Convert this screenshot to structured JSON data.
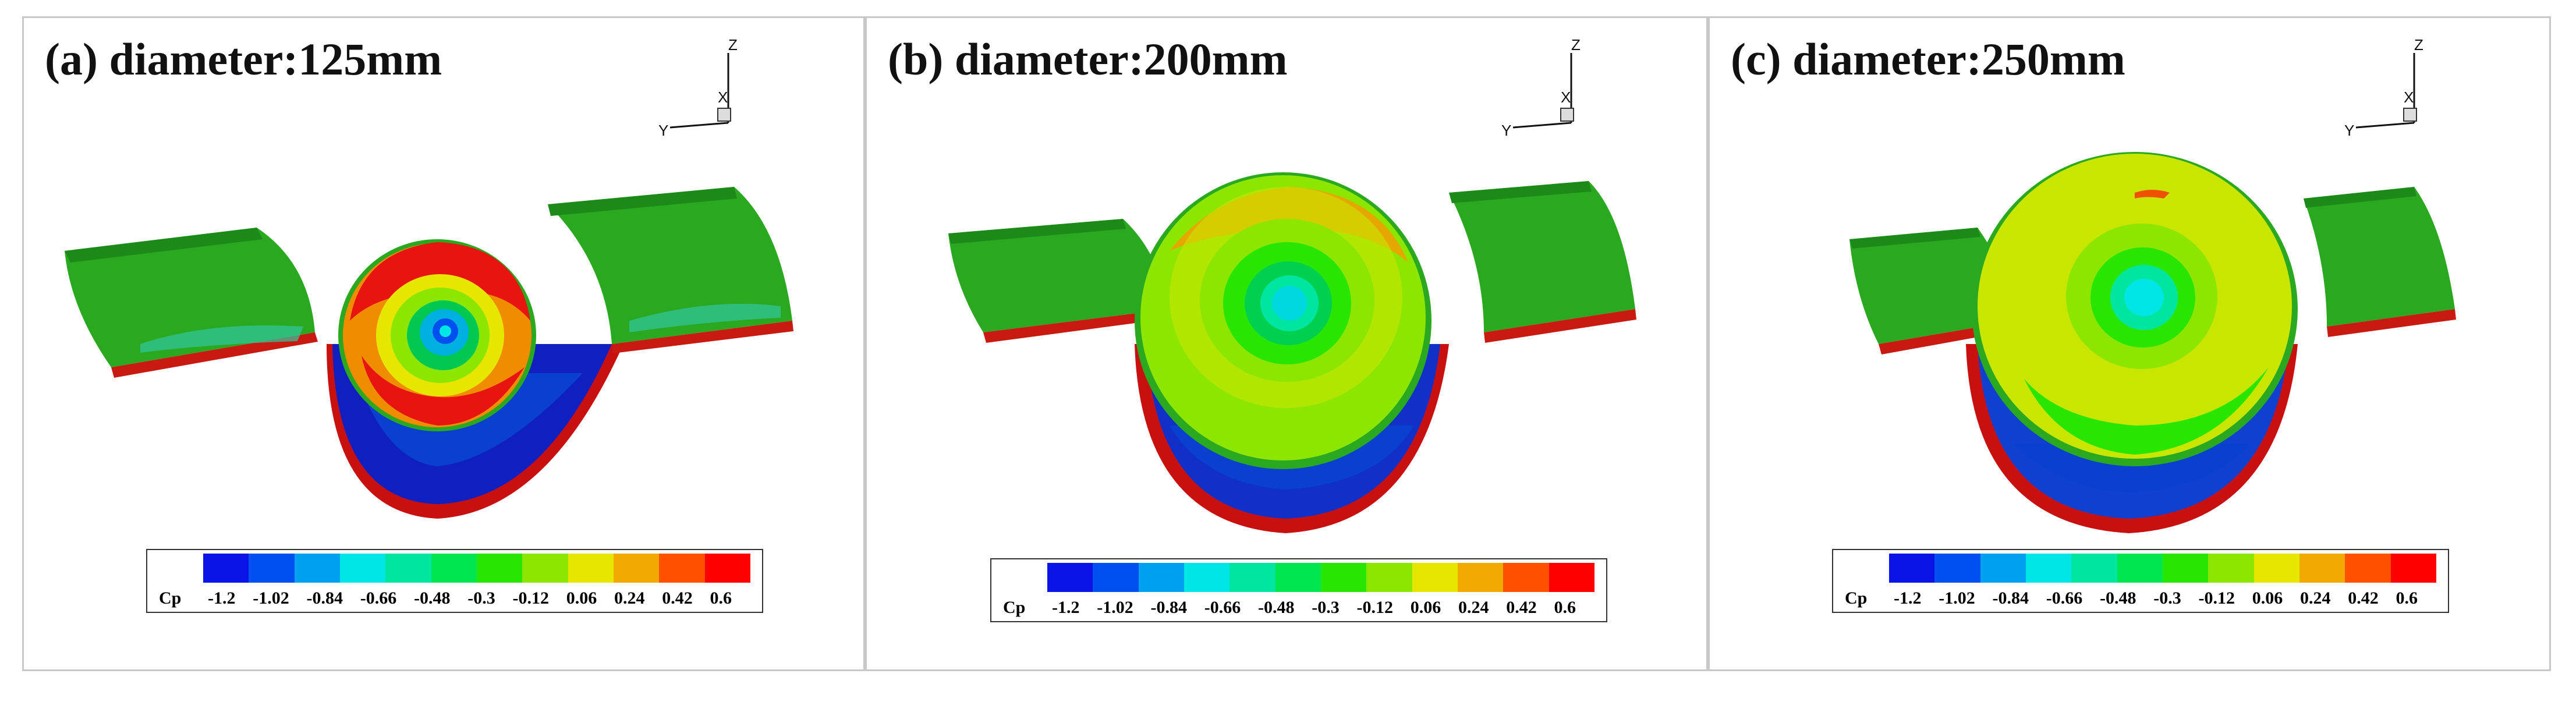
{
  "panels": [
    {
      "title": "(a) diameter:125mm"
    },
    {
      "title": "(b) diameter:200mm"
    },
    {
      "title": "(c) diameter:250mm"
    }
  ],
  "axes_labels": {
    "z": "Z",
    "x": "X",
    "y": "Y"
  },
  "legend": {
    "variable": "Cp",
    "ticks": [
      "-1.2",
      "-1.02",
      "-0.84",
      "-0.66",
      "-0.48",
      "-0.3",
      "-0.12",
      "0.06",
      "0.24",
      "0.42",
      "0.6"
    ],
    "colors": [
      "#0a14e6",
      "#0050f0",
      "#00a0f0",
      "#00e6e6",
      "#00e6a0",
      "#00e650",
      "#28e600",
      "#8ce600",
      "#e6e600",
      "#f0aa00",
      "#ff5000",
      "#ff0000"
    ]
  }
}
